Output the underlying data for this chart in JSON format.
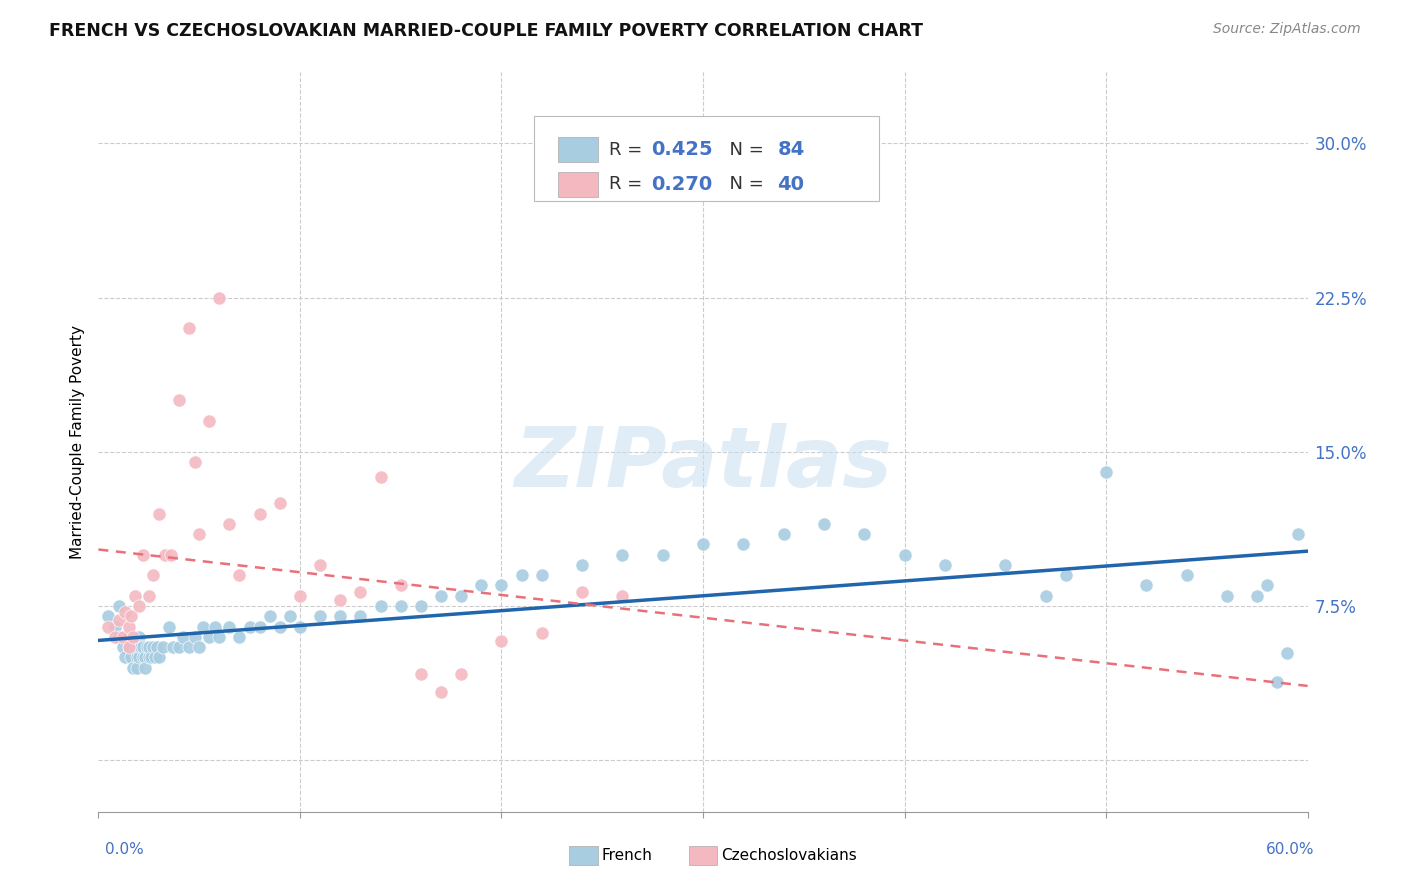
{
  "title": "FRENCH VS CZECHOSLOVAKIAN MARRIED-COUPLE FAMILY POVERTY CORRELATION CHART",
  "source": "Source: ZipAtlas.com",
  "ylabel": "Married-Couple Family Poverty",
  "yticks": [
    0.0,
    0.075,
    0.15,
    0.225,
    0.3
  ],
  "ytick_labels": [
    "",
    "7.5%",
    "15.0%",
    "22.5%",
    "30.0%"
  ],
  "xlim": [
    0.0,
    0.6
  ],
  "ylim": [
    -0.025,
    0.335
  ],
  "french_color": "#a8cce0",
  "czech_color": "#f4b8c1",
  "french_line_color": "#2166ac",
  "czech_line_color": "#e8707a",
  "french_R": 0.425,
  "french_N": 84,
  "czech_R": 0.27,
  "czech_N": 40,
  "watermark": "ZIPatlas",
  "legend_R_color": "#4472c4",
  "legend_text_color": "#333333",
  "french_x": [
    0.005,
    0.008,
    0.01,
    0.01,
    0.012,
    0.013,
    0.015,
    0.015,
    0.016,
    0.017,
    0.018,
    0.018,
    0.019,
    0.019,
    0.02,
    0.02,
    0.02,
    0.021,
    0.022,
    0.022,
    0.023,
    0.023,
    0.024,
    0.025,
    0.025,
    0.026,
    0.027,
    0.028,
    0.029,
    0.03,
    0.032,
    0.035,
    0.037,
    0.04,
    0.042,
    0.045,
    0.048,
    0.05,
    0.052,
    0.055,
    0.058,
    0.06,
    0.065,
    0.07,
    0.075,
    0.08,
    0.085,
    0.09,
    0.095,
    0.1,
    0.11,
    0.12,
    0.13,
    0.14,
    0.15,
    0.16,
    0.17,
    0.18,
    0.19,
    0.2,
    0.21,
    0.22,
    0.24,
    0.26,
    0.28,
    0.3,
    0.32,
    0.34,
    0.36,
    0.38,
    0.4,
    0.42,
    0.45,
    0.47,
    0.48,
    0.5,
    0.52,
    0.54,
    0.56,
    0.575,
    0.58,
    0.585,
    0.59,
    0.595
  ],
  "french_y": [
    0.07,
    0.065,
    0.075,
    0.06,
    0.055,
    0.05,
    0.06,
    0.055,
    0.05,
    0.045,
    0.055,
    0.06,
    0.05,
    0.045,
    0.055,
    0.06,
    0.05,
    0.055,
    0.05,
    0.055,
    0.05,
    0.045,
    0.055,
    0.05,
    0.055,
    0.05,
    0.055,
    0.05,
    0.055,
    0.05,
    0.055,
    0.065,
    0.055,
    0.055,
    0.06,
    0.055,
    0.06,
    0.055,
    0.065,
    0.06,
    0.065,
    0.06,
    0.065,
    0.06,
    0.065,
    0.065,
    0.07,
    0.065,
    0.07,
    0.065,
    0.07,
    0.07,
    0.07,
    0.075,
    0.075,
    0.075,
    0.08,
    0.08,
    0.085,
    0.085,
    0.09,
    0.09,
    0.095,
    0.1,
    0.1,
    0.105,
    0.105,
    0.11,
    0.115,
    0.11,
    0.1,
    0.095,
    0.095,
    0.08,
    0.09,
    0.14,
    0.085,
    0.09,
    0.08,
    0.08,
    0.085,
    0.038,
    0.052,
    0.11
  ],
  "czech_x": [
    0.005,
    0.008,
    0.01,
    0.012,
    0.013,
    0.015,
    0.015,
    0.016,
    0.017,
    0.018,
    0.02,
    0.022,
    0.025,
    0.027,
    0.03,
    0.033,
    0.036,
    0.04,
    0.045,
    0.048,
    0.05,
    0.055,
    0.06,
    0.065,
    0.07,
    0.08,
    0.09,
    0.1,
    0.11,
    0.12,
    0.13,
    0.14,
    0.15,
    0.16,
    0.17,
    0.18,
    0.2,
    0.22,
    0.24,
    0.26
  ],
  "czech_y": [
    0.065,
    0.06,
    0.068,
    0.06,
    0.072,
    0.065,
    0.055,
    0.07,
    0.06,
    0.08,
    0.075,
    0.1,
    0.08,
    0.09,
    0.12,
    0.1,
    0.1,
    0.175,
    0.21,
    0.145,
    0.11,
    0.165,
    0.225,
    0.115,
    0.09,
    0.12,
    0.125,
    0.08,
    0.095,
    0.078,
    0.082,
    0.138,
    0.085,
    0.042,
    0.033,
    0.042,
    0.058,
    0.062,
    0.082,
    0.08
  ]
}
